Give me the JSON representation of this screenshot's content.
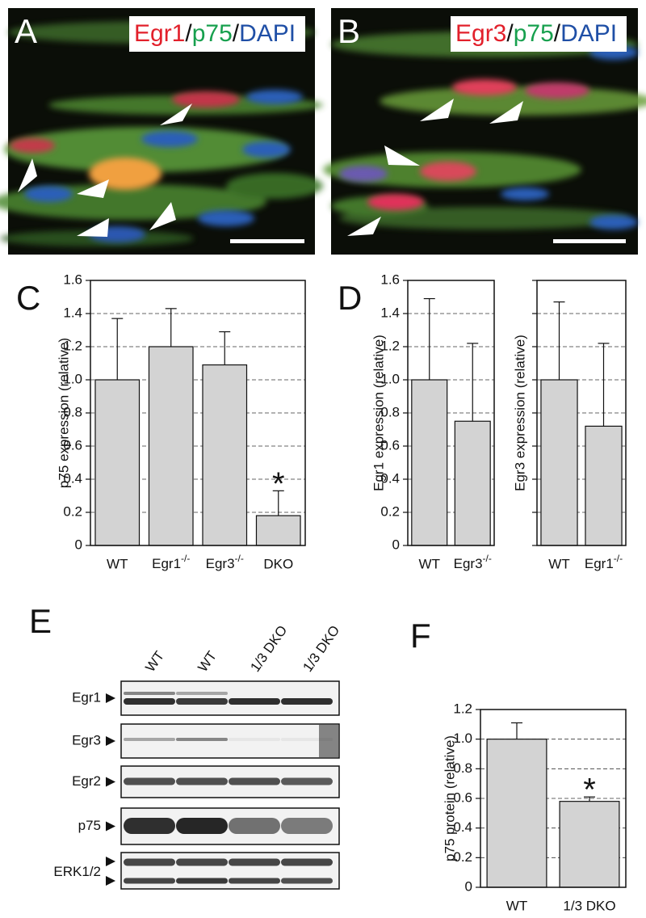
{
  "images": [
    {
      "panel_label": "A",
      "stain": [
        {
          "text": "Egr1",
          "color": "#e2202b"
        },
        {
          "text": "/",
          "color": "#111111"
        },
        {
          "text": "p75",
          "color": "#17a04e"
        },
        {
          "text": "/",
          "color": "#111111"
        },
        {
          "text": "DAPI",
          "color": "#1f4fa6"
        }
      ]
    },
    {
      "panel_label": "B",
      "stain": [
        {
          "text": "Egr3",
          "color": "#e2202b"
        },
        {
          "text": "/",
          "color": "#111111"
        },
        {
          "text": "p75",
          "color": "#17a04e"
        },
        {
          "text": "/",
          "color": "#111111"
        },
        {
          "text": "DAPI",
          "color": "#1f4fa6"
        }
      ]
    }
  ],
  "blot": {
    "panel_label": "E",
    "lanes": [
      "WT",
      "WT",
      "1/3 DKO",
      "1/3 DKO"
    ],
    "rows": [
      "Egr1",
      "Egr3",
      "Egr2",
      "p75",
      "ERK1/2"
    ]
  },
  "chart_data": [
    {
      "type": "bar",
      "panel_label": "C",
      "ylabel": "p75 expression (relative)",
      "categories": [
        "WT",
        "Egr1-/-",
        "Egr3-/-",
        "DKO"
      ],
      "values": [
        1.0,
        1.2,
        1.09,
        0.18
      ],
      "errors": [
        0.37,
        0.23,
        0.2,
        0.15
      ],
      "significance": [
        null,
        null,
        null,
        "*"
      ],
      "color": "#d3d3d3",
      "ylim": [
        0,
        1.6
      ],
      "yticks": [
        0,
        0.2,
        0.4,
        0.6,
        0.8,
        {
          "value": 1,
          "label": "1.0"
        },
        1.2,
        1.4,
        1.6
      ],
      "grid": true,
      "ytick_labels": true
    },
    {
      "type": "bar",
      "panel_label": "D",
      "ylabel": "Egr1 expression (relative)",
      "categories": [
        "WT",
        "Egr3-/-"
      ],
      "values": [
        1.0,
        0.75
      ],
      "errors": [
        0.49,
        0.47
      ],
      "color": "#d3d3d3",
      "ylim": [
        0,
        1.6
      ],
      "yticks": [
        0,
        0.2,
        0.4,
        0.6,
        0.8,
        {
          "value": 1,
          "label": "1.0"
        },
        1.2,
        1.4,
        1.6
      ],
      "grid": true,
      "ytick_labels": true
    },
    {
      "type": "bar",
      "ylabel": "Egr3 expression (relative)",
      "categories": [
        "WT",
        "Egr1-/-"
      ],
      "values": [
        1.0,
        0.72
      ],
      "errors": [
        0.47,
        0.5
      ],
      "color": "#d3d3d3",
      "ylim": [
        0,
        1.6
      ],
      "yticks": [
        0,
        0.2,
        0.4,
        0.6,
        0.8,
        1,
        1.2,
        1.4,
        1.6
      ],
      "grid": true,
      "ytick_labels": false
    },
    {
      "type": "bar",
      "panel_label": "F",
      "ylabel": "p75 protein (relative)",
      "categories": [
        "WT",
        "1/3 DKO"
      ],
      "values": [
        1.0,
        0.58
      ],
      "errors": [
        0.11,
        0.03
      ],
      "significance": [
        null,
        "*"
      ],
      "color": "#d3d3d3",
      "ylim": [
        0,
        1.2
      ],
      "yticks": [
        0,
        0.2,
        0.4,
        0.6,
        0.8,
        {
          "value": 1,
          "label": "1.0"
        },
        1.2
      ],
      "grid": true,
      "ytick_labels": true
    }
  ]
}
